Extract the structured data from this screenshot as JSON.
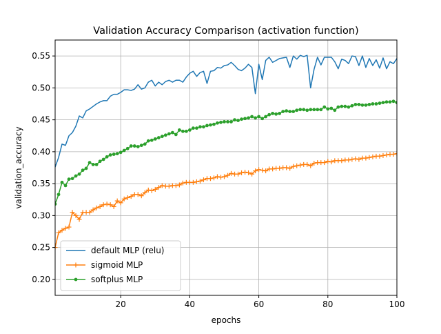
{
  "chart_data": {
    "type": "line",
    "title": "Validation Accuracy Comparison (activation function)",
    "xlabel": "epochs",
    "ylabel": "validation_accuracy",
    "xlim": [
      1,
      100
    ],
    "ylim": [
      0.175,
      0.575
    ],
    "x_ticks": [
      20,
      40,
      60,
      80,
      100
    ],
    "y_ticks": [
      0.2,
      0.25,
      0.3,
      0.35,
      0.4,
      0.45,
      0.5,
      0.55
    ],
    "grid": true,
    "legend_position": "lower-left",
    "series": [
      {
        "name": "default MLP (relu)",
        "color": "#1f77b4",
        "marker": "none",
        "values": [
          0.376,
          0.391,
          0.412,
          0.41,
          0.425,
          0.43,
          0.44,
          0.456,
          0.453,
          0.464,
          0.467,
          0.471,
          0.475,
          0.478,
          0.48,
          0.48,
          0.487,
          0.49,
          0.49,
          0.493,
          0.497,
          0.497,
          0.496,
          0.498,
          0.505,
          0.498,
          0.5,
          0.509,
          0.512,
          0.503,
          0.509,
          0.505,
          0.51,
          0.512,
          0.509,
          0.512,
          0.512,
          0.509,
          0.517,
          0.523,
          0.526,
          0.518,
          0.524,
          0.526,
          0.507,
          0.526,
          0.527,
          0.532,
          0.531,
          0.535,
          0.536,
          0.54,
          0.535,
          0.529,
          0.527,
          0.531,
          0.537,
          0.532,
          0.491,
          0.537,
          0.513,
          0.543,
          0.548,
          0.54,
          0.543,
          0.546,
          0.547,
          0.548,
          0.532,
          0.55,
          0.545,
          0.551,
          0.549,
          0.551,
          0.5,
          0.529,
          0.548,
          0.536,
          0.548,
          0.548,
          0.548,
          0.541,
          0.53,
          0.545,
          0.543,
          0.538,
          0.55,
          0.549,
          0.535,
          0.55,
          0.532,
          0.546,
          0.535,
          0.544,
          0.531,
          0.547,
          0.53,
          0.541,
          0.538,
          0.546,
          0.557,
          0.537,
          0.555
        ]
      },
      {
        "name": "sigmoid MLP",
        "color": "#ff7f0e",
        "marker": "plus",
        "values": [
          0.25,
          0.273,
          0.277,
          0.28,
          0.282,
          0.305,
          0.3,
          0.294,
          0.305,
          0.305,
          0.305,
          0.309,
          0.312,
          0.314,
          0.317,
          0.318,
          0.317,
          0.314,
          0.323,
          0.32,
          0.326,
          0.328,
          0.33,
          0.333,
          0.333,
          0.331,
          0.336,
          0.34,
          0.339,
          0.341,
          0.344,
          0.347,
          0.346,
          0.346,
          0.347,
          0.347,
          0.348,
          0.351,
          0.352,
          0.352,
          0.352,
          0.353,
          0.354,
          0.356,
          0.358,
          0.358,
          0.359,
          0.361,
          0.36,
          0.361,
          0.363,
          0.366,
          0.365,
          0.365,
          0.367,
          0.368,
          0.367,
          0.365,
          0.37,
          0.372,
          0.371,
          0.37,
          0.373,
          0.373,
          0.374,
          0.374,
          0.375,
          0.375,
          0.374,
          0.377,
          0.378,
          0.379,
          0.38,
          0.38,
          0.378,
          0.382,
          0.383,
          0.383,
          0.383,
          0.385,
          0.384,
          0.386,
          0.386,
          0.386,
          0.387,
          0.387,
          0.388,
          0.389,
          0.388,
          0.39,
          0.39,
          0.391,
          0.392,
          0.393,
          0.393,
          0.394,
          0.395,
          0.396,
          0.396,
          0.397,
          0.398,
          0.399,
          0.399
        ]
      },
      {
        "name": "softplus MLP",
        "color": "#2ca02c",
        "marker": "dot",
        "values": [
          0.318,
          0.333,
          0.352,
          0.347,
          0.357,
          0.358,
          0.362,
          0.365,
          0.371,
          0.374,
          0.383,
          0.38,
          0.38,
          0.385,
          0.388,
          0.392,
          0.395,
          0.396,
          0.397,
          0.399,
          0.402,
          0.405,
          0.409,
          0.409,
          0.408,
          0.41,
          0.412,
          0.417,
          0.418,
          0.42,
          0.422,
          0.424,
          0.426,
          0.428,
          0.43,
          0.427,
          0.434,
          0.432,
          0.432,
          0.434,
          0.437,
          0.437,
          0.439,
          0.439,
          0.441,
          0.442,
          0.443,
          0.445,
          0.446,
          0.447,
          0.447,
          0.447,
          0.45,
          0.449,
          0.451,
          0.452,
          0.453,
          0.455,
          0.453,
          0.455,
          0.452,
          0.455,
          0.458,
          0.46,
          0.459,
          0.46,
          0.463,
          0.464,
          0.463,
          0.463,
          0.465,
          0.466,
          0.466,
          0.465,
          0.466,
          0.466,
          0.466,
          0.466,
          0.47,
          0.467,
          0.468,
          0.465,
          0.47,
          0.471,
          0.471,
          0.47,
          0.472,
          0.474,
          0.474,
          0.473,
          0.473,
          0.474,
          0.475,
          0.475,
          0.476,
          0.477,
          0.478,
          0.478,
          0.479,
          0.477,
          0.48,
          0.48,
          0.482
        ]
      }
    ]
  }
}
